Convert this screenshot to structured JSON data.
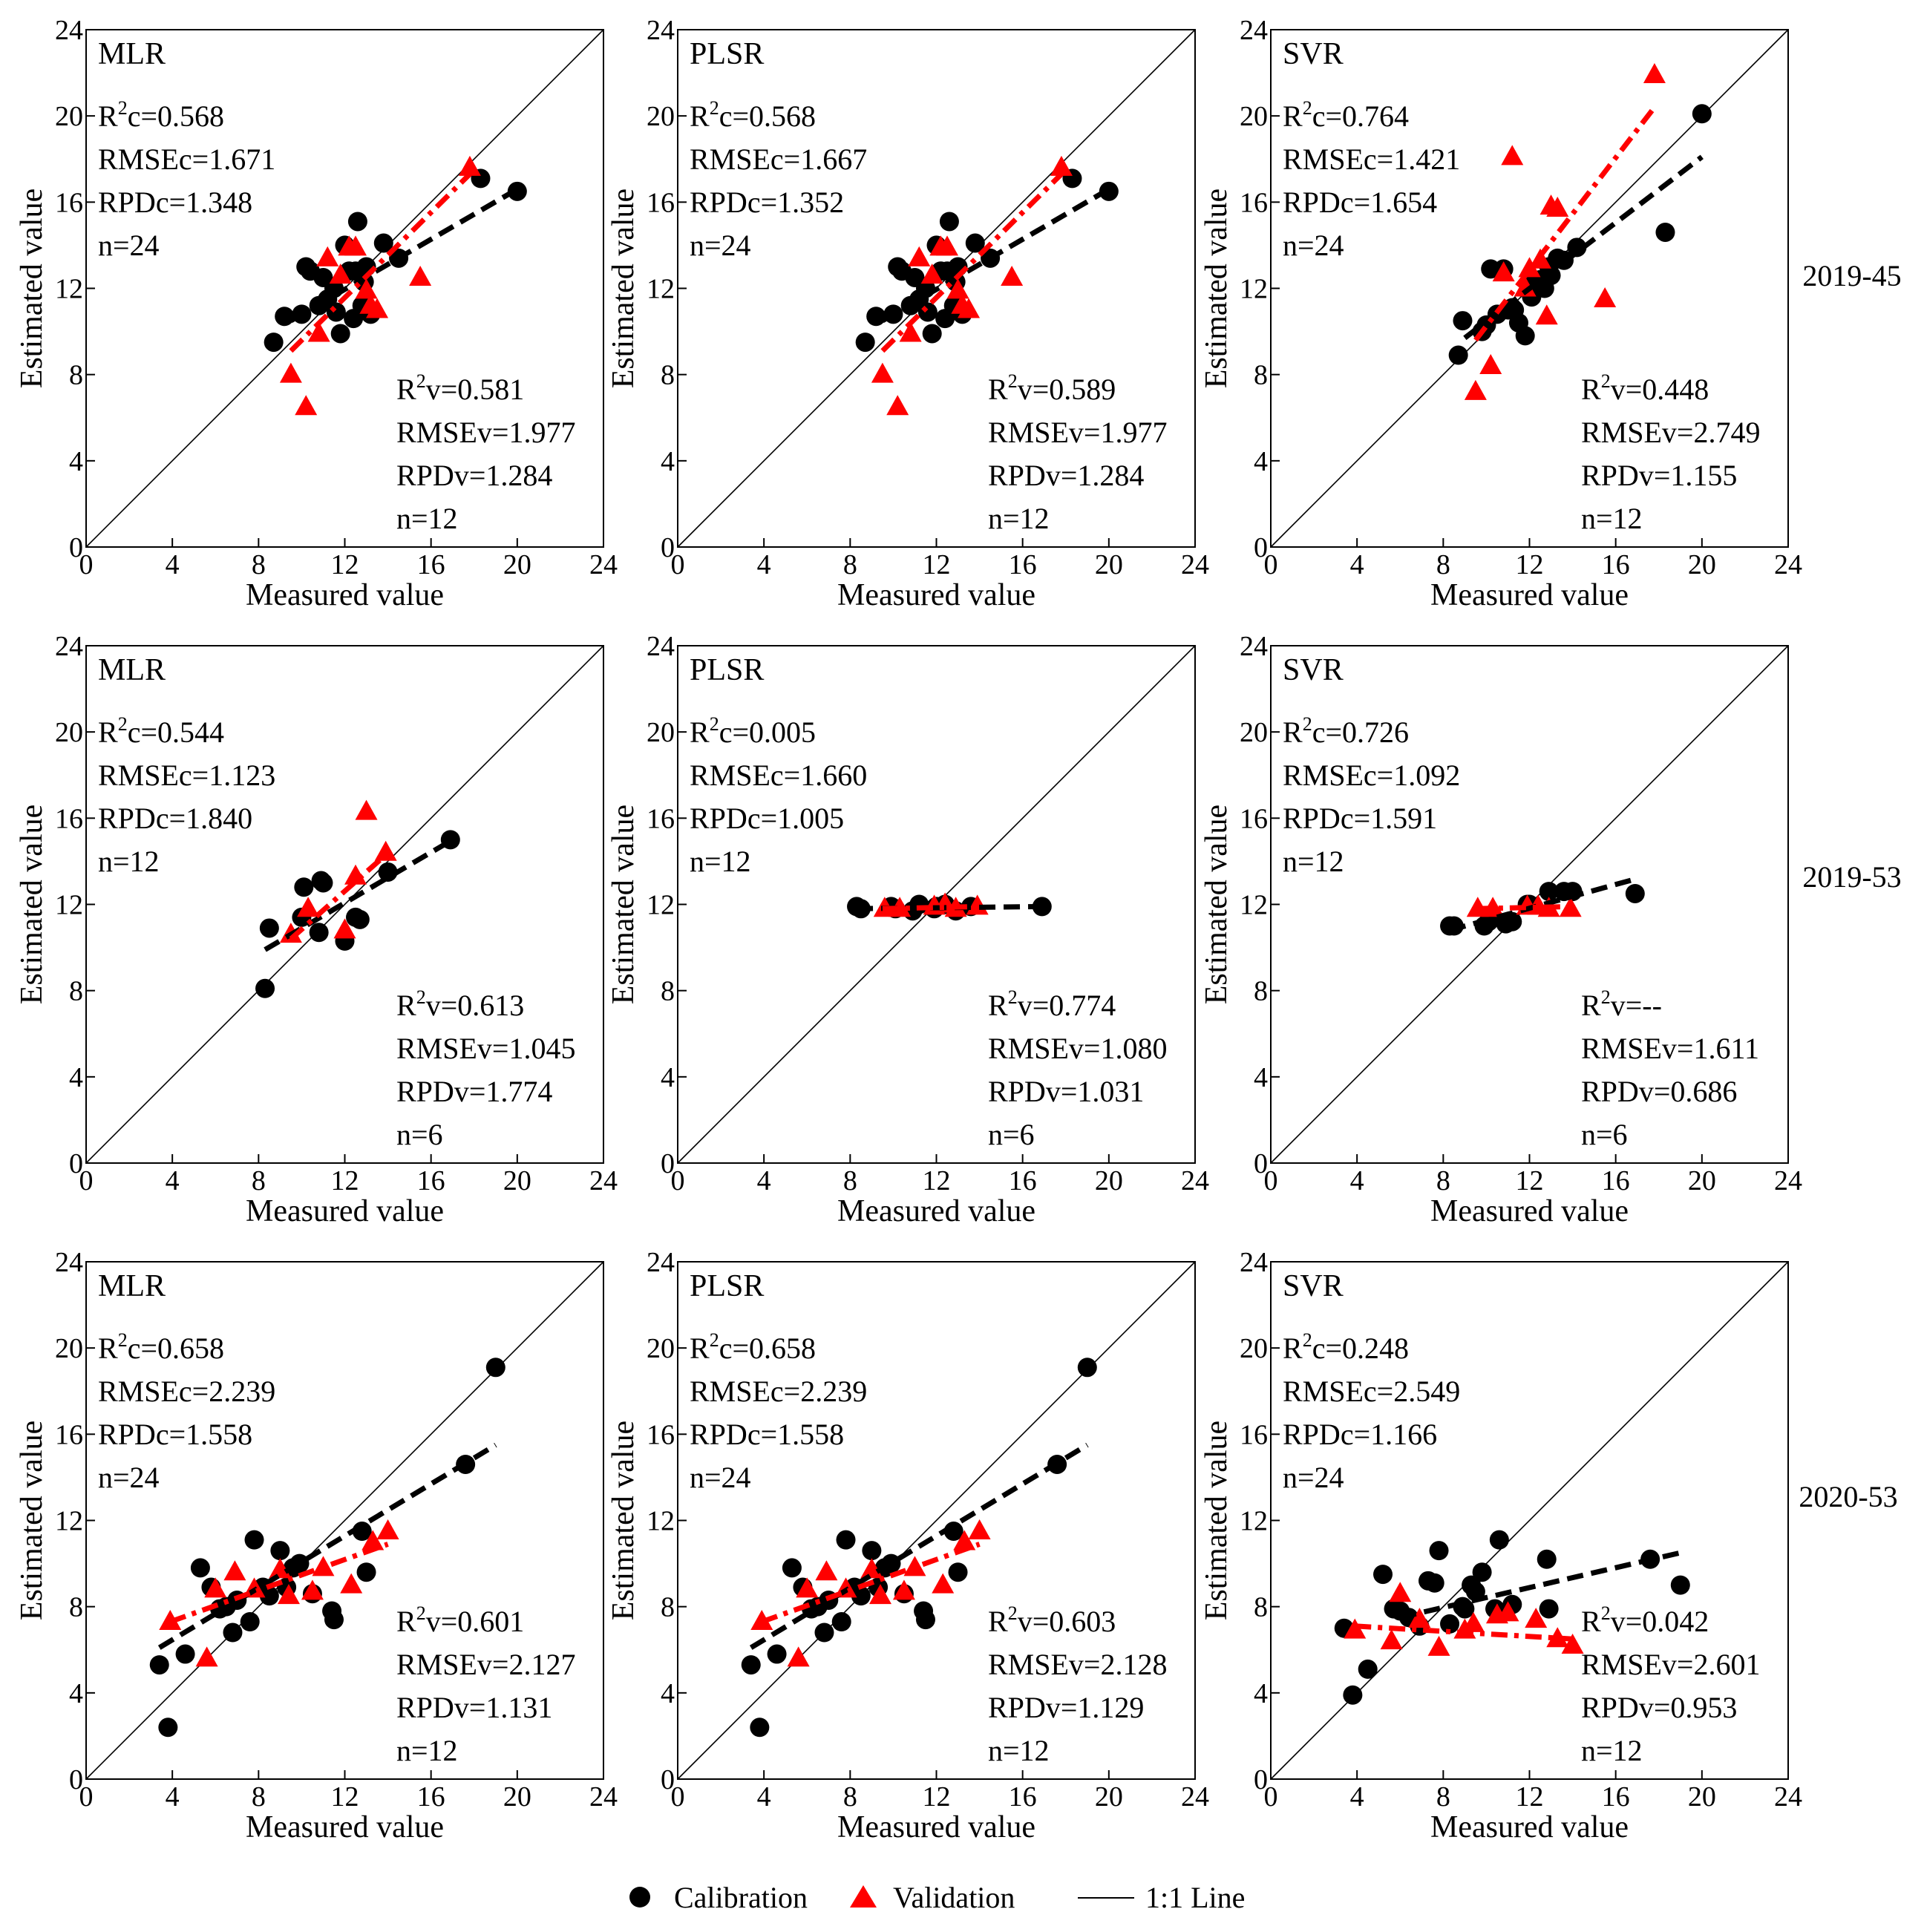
{
  "figure": {
    "title": "",
    "row_labels": [
      "2019-45",
      "2019-53",
      "2020-53"
    ],
    "legend": {
      "calibration_label": "Calibration",
      "validation_label": "Validation",
      "line_label": "1:1 Line",
      "placement": "bottom-center"
    },
    "colors": {
      "calibration": "#000000",
      "validation": "#ff0000",
      "one_to_one": "#000000"
    }
  },
  "chart_data": [
    {
      "type": "scatter",
      "title": "MLR",
      "row_label": "2019-45",
      "xlabel": "Measured value",
      "ylabel": "Estimated value",
      "xlim": [
        0,
        24
      ],
      "ylim": [
        0,
        24
      ],
      "ticks": [
        0,
        4,
        8,
        12,
        16,
        20,
        24
      ],
      "calibration_stats": [
        "R²c=0.568",
        "RMSEc=1.671",
        "RPDc=1.348",
        "n=24"
      ],
      "validation_stats": [
        "R²v=0.581",
        "RMSEv=1.977",
        "RPDv=1.284",
        "n=12"
      ],
      "calibration": {
        "x": [
          8.7,
          9.2,
          10.0,
          10.2,
          10.4,
          10.8,
          11.0,
          11.2,
          11.5,
          11.8,
          12.0,
          12.2,
          12.4,
          12.6,
          12.8,
          12.9,
          13.0,
          13.2,
          13.8,
          14.5,
          18.3,
          20.0,
          11.6,
          12.5
        ],
        "y": [
          9.5,
          10.7,
          10.8,
          13.0,
          12.8,
          11.2,
          12.5,
          11.5,
          12.0,
          9.9,
          14.0,
          12.8,
          10.6,
          15.1,
          11.2,
          12.3,
          13.0,
          10.8,
          14.1,
          13.4,
          17.1,
          16.5,
          10.9,
          12.8
        ]
      },
      "validation": {
        "x": [
          9.5,
          10.2,
          10.8,
          11.2,
          11.8,
          12.2,
          12.5,
          13.0,
          13.2,
          13.5,
          15.5,
          17.8
        ],
        "y": [
          8.0,
          6.5,
          9.9,
          13.4,
          12.6,
          13.9,
          13.9,
          11.9,
          11.2,
          11.0,
          12.5,
          17.6
        ]
      },
      "calibration_fit": {
        "x": [
          9.5,
          20.0
        ],
        "y": [
          10.5,
          16.6
        ]
      },
      "validation_fit": {
        "x": [
          9.5,
          17.8
        ],
        "y": [
          9.1,
          17.3
        ]
      }
    },
    {
      "type": "scatter",
      "title": "PLSR",
      "row_label": "2019-45",
      "xlabel": "Measured value",
      "ylabel": "Estimated value",
      "xlim": [
        0,
        24
      ],
      "ylim": [
        0,
        24
      ],
      "ticks": [
        0,
        4,
        8,
        12,
        16,
        20,
        24
      ],
      "calibration_stats": [
        "R²c=0.568",
        "RMSEc=1.667",
        "RPDc=1.352",
        "n=24"
      ],
      "validation_stats": [
        "R²v=0.589",
        "RMSEv=1.977",
        "RPDv=1.284",
        "n=12"
      ],
      "calibration": {
        "x": [
          8.7,
          9.2,
          10.0,
          10.2,
          10.4,
          10.8,
          11.0,
          11.2,
          11.5,
          11.8,
          12.0,
          12.2,
          12.4,
          12.6,
          12.8,
          12.9,
          13.0,
          13.2,
          13.8,
          14.5,
          18.3,
          20.0,
          11.6,
          12.5
        ],
        "y": [
          9.5,
          10.7,
          10.8,
          13.0,
          12.8,
          11.2,
          12.5,
          11.5,
          12.0,
          9.9,
          14.0,
          12.8,
          10.6,
          15.1,
          11.2,
          12.3,
          13.0,
          10.8,
          14.1,
          13.4,
          17.1,
          16.5,
          10.9,
          12.8
        ]
      },
      "validation": {
        "x": [
          9.5,
          10.2,
          10.8,
          11.2,
          11.8,
          12.2,
          12.5,
          13.0,
          13.2,
          13.5,
          15.5,
          17.8
        ],
        "y": [
          8.0,
          6.5,
          9.9,
          13.4,
          12.6,
          13.9,
          13.9,
          11.9,
          11.2,
          11.0,
          12.5,
          17.6
        ]
      },
      "calibration_fit": {
        "x": [
          9.5,
          20.0
        ],
        "y": [
          10.5,
          16.6
        ]
      },
      "validation_fit": {
        "x": [
          9.5,
          17.8
        ],
        "y": [
          9.1,
          17.3
        ]
      }
    },
    {
      "type": "scatter",
      "title": "SVR",
      "row_label": "2019-45",
      "xlabel": "Measured value",
      "ylabel": "Estimated value",
      "xlim": [
        0,
        24
      ],
      "ylim": [
        0,
        24
      ],
      "ticks": [
        0,
        4,
        8,
        12,
        16,
        20,
        24
      ],
      "calibration_stats": [
        "R²c=0.764",
        "RMSEc=1.421",
        "RPDc=1.654",
        "n=24"
      ],
      "validation_stats": [
        "R²v=0.448",
        "RMSEv=2.749",
        "RPDv=1.155",
        "n=12"
      ],
      "calibration": {
        "x": [
          8.7,
          8.9,
          9.8,
          10.2,
          10.5,
          10.8,
          11.0,
          11.2,
          11.3,
          11.5,
          11.8,
          12.0,
          12.3,
          12.5,
          12.7,
          12.9,
          13.0,
          13.3,
          13.6,
          14.2,
          18.3,
          20.0,
          10.0,
          12.1
        ],
        "y": [
          8.9,
          10.5,
          10.0,
          12.9,
          10.8,
          12.9,
          11.0,
          11.1,
          11.0,
          10.4,
          9.8,
          12.2,
          12.0,
          12.4,
          12.0,
          13.0,
          12.6,
          13.4,
          13.3,
          13.9,
          14.6,
          20.1,
          10.3,
          11.6
        ]
      },
      "validation": {
        "x": [
          9.5,
          10.2,
          10.8,
          11.2,
          11.8,
          12.0,
          12.5,
          12.8,
          13.0,
          13.3,
          15.5,
          17.8
        ],
        "y": [
          7.2,
          8.4,
          12.7,
          18.1,
          12.0,
          12.9,
          13.3,
          10.7,
          15.8,
          15.7,
          11.5,
          21.9
        ]
      },
      "calibration_fit": {
        "x": [
          9.0,
          20.0
        ],
        "y": [
          9.7,
          18.1
        ]
      },
      "validation_fit": {
        "x": [
          9.5,
          17.8
        ],
        "y": [
          9.6,
          20.4
        ]
      }
    },
    {
      "type": "scatter",
      "title": "MLR",
      "row_label": "2019-53",
      "xlabel": "Measured value",
      "ylabel": "Estimated value",
      "xlim": [
        0,
        24
      ],
      "ylim": [
        0,
        24
      ],
      "ticks": [
        0,
        4,
        8,
        12,
        16,
        20,
        24
      ],
      "calibration_stats": [
        "R²c=0.544",
        "RMSEc=1.123",
        "RPDc=1.840",
        "n=12"
      ],
      "validation_stats": [
        "R²v=0.613",
        "RMSEv=1.045",
        "RPDv=1.774",
        "n=6"
      ],
      "calibration": {
        "x": [
          8.3,
          8.5,
          10.0,
          10.1,
          10.8,
          10.9,
          12.0,
          12.5,
          12.7,
          14.0,
          16.9,
          11.0
        ],
        "y": [
          8.1,
          10.9,
          11.4,
          12.8,
          10.7,
          13.1,
          10.3,
          11.4,
          11.3,
          13.5,
          15.0,
          13.0
        ]
      },
      "validation": {
        "x": [
          9.5,
          10.3,
          12.0,
          12.5,
          13.0,
          13.9
        ],
        "y": [
          10.6,
          11.8,
          10.8,
          13.3,
          16.3,
          14.4
        ]
      },
      "calibration_fit": {
        "x": [
          8.3,
          17.0
        ],
        "y": [
          9.9,
          15.0
        ]
      },
      "validation_fit": {
        "x": [
          9.5,
          13.9
        ],
        "y": [
          10.4,
          14.3
        ]
      }
    },
    {
      "type": "scatter",
      "title": "PLSR",
      "row_label": "2019-53",
      "xlabel": "Measured value",
      "ylabel": "Estimated value",
      "xlim": [
        0,
        24
      ],
      "ylim": [
        0,
        24
      ],
      "ticks": [
        0,
        4,
        8,
        12,
        16,
        20,
        24
      ],
      "calibration_stats": [
        "R²c=0.005",
        "RMSEc=1.660",
        "RPDc=1.005",
        "n=12"
      ],
      "validation_stats": [
        "R²v=0.774",
        "RMSEv=1.080",
        "RPDv=1.031",
        "n=6"
      ],
      "calibration": {
        "x": [
          8.3,
          8.5,
          9.9,
          10.1,
          10.9,
          11.2,
          11.9,
          12.0,
          12.9,
          13.6,
          16.9,
          12.4
        ],
        "y": [
          11.9,
          11.8,
          11.9,
          11.8,
          11.7,
          12.0,
          11.8,
          11.9,
          11.7,
          11.9,
          11.9,
          12.0
        ]
      },
      "validation": {
        "x": [
          9.6,
          10.3,
          11.9,
          12.4,
          12.9,
          13.9
        ],
        "y": [
          11.8,
          11.8,
          11.9,
          12.0,
          11.8,
          11.9
        ]
      },
      "calibration_fit": {
        "x": [
          8.3,
          17.0
        ],
        "y": [
          11.8,
          11.9
        ]
      },
      "validation_fit": {
        "x": [
          9.5,
          13.9
        ],
        "y": [
          11.8,
          11.9
        ]
      }
    },
    {
      "type": "scatter",
      "title": "SVR",
      "row_label": "2019-53",
      "xlabel": "Measured value",
      "ylabel": "Estimated value",
      "xlim": [
        0,
        24
      ],
      "ylim": [
        0,
        24
      ],
      "ticks": [
        0,
        4,
        8,
        12,
        16,
        20,
        24
      ],
      "calibration_stats": [
        "R²c=0.726",
        "RMSEc=1.092",
        "RPDc=1.591",
        "n=12"
      ],
      "validation_stats": [
        "R²v=--",
        "RMSEv=1.611",
        "RPDv=0.686",
        "n=6"
      ],
      "calibration": {
        "x": [
          8.3,
          8.5,
          9.9,
          10.1,
          10.9,
          11.2,
          11.9,
          12.0,
          12.9,
          13.6,
          16.9,
          14.0
        ],
        "y": [
          11.0,
          11.0,
          11.0,
          11.2,
          11.1,
          11.2,
          12.0,
          12.0,
          12.6,
          12.6,
          12.5,
          12.6
        ]
      },
      "validation": {
        "x": [
          9.6,
          10.3,
          11.9,
          12.4,
          12.9,
          13.9
        ],
        "y": [
          11.8,
          11.8,
          11.9,
          11.9,
          11.8,
          11.8
        ]
      },
      "calibration_fit": {
        "x": [
          8.3,
          17.0
        ],
        "y": [
          10.8,
          13.2
        ]
      },
      "validation_fit": {
        "x": [
          9.5,
          13.9
        ],
        "y": [
          11.8,
          11.9
        ]
      }
    },
    {
      "type": "scatter",
      "title": "MLR",
      "row_label": "2020-53",
      "xlabel": "Measured value",
      "ylabel": "Estimated value",
      "xlim": [
        0,
        24
      ],
      "ylim": [
        0,
        24
      ],
      "ticks": [
        0,
        4,
        8,
        12,
        16,
        20,
        24
      ],
      "calibration_stats": [
        "R²c=0.658",
        "RMSEc=2.239",
        "RPDc=1.558",
        "n=24"
      ],
      "validation_stats": [
        "R²v=0.601",
        "RMSEv=2.127",
        "RPDv=1.131",
        "n=12"
      ],
      "calibration": {
        "x": [
          3.4,
          3.8,
          4.6,
          5.3,
          5.8,
          6.2,
          6.5,
          6.8,
          7.0,
          7.6,
          7.8,
          8.5,
          9.0,
          9.3,
          9.6,
          9.9,
          10.5,
          11.4,
          11.5,
          12.8,
          13.0,
          17.6,
          19.0,
          8.2
        ],
        "y": [
          5.3,
          2.4,
          5.8,
          9.8,
          8.9,
          7.9,
          8.0,
          6.8,
          8.3,
          7.3,
          11.1,
          8.5,
          10.6,
          8.9,
          9.8,
          10.0,
          8.6,
          7.8,
          7.4,
          11.5,
          9.6,
          14.6,
          19.1,
          8.9
        ]
      },
      "validation": {
        "x": [
          3.9,
          5.6,
          6.0,
          6.9,
          7.8,
          9.0,
          9.4,
          10.5,
          11.0,
          12.3,
          13.3,
          14.0
        ],
        "y": [
          7.3,
          5.6,
          8.8,
          9.6,
          8.8,
          9.7,
          8.5,
          8.7,
          9.8,
          9.0,
          11.0,
          11.5
        ]
      },
      "calibration_fit": {
        "x": [
          3.4,
          19.0
        ],
        "y": [
          6.1,
          15.5
        ]
      },
      "validation_fit": {
        "x": [
          3.9,
          14.0
        ],
        "y": [
          7.3,
          10.9
        ]
      }
    },
    {
      "type": "scatter",
      "title": "PLSR",
      "row_label": "2020-53",
      "xlabel": "Measured value",
      "ylabel": "Estimated value",
      "xlim": [
        0,
        24
      ],
      "ylim": [
        0,
        24
      ],
      "ticks": [
        0,
        4,
        8,
        12,
        16,
        20,
        24
      ],
      "calibration_stats": [
        "R²c=0.658",
        "RMSEc=2.239",
        "RPDc=1.558",
        "n=24"
      ],
      "validation_stats": [
        "R²v=0.603",
        "RMSEv=2.128",
        "RPDv=1.129",
        "n=12"
      ],
      "calibration": {
        "x": [
          3.4,
          3.8,
          4.6,
          5.3,
          5.8,
          6.2,
          6.5,
          6.8,
          7.0,
          7.6,
          7.8,
          8.5,
          9.0,
          9.3,
          9.6,
          9.9,
          10.5,
          11.4,
          11.5,
          12.8,
          13.0,
          17.6,
          19.0,
          8.2
        ],
        "y": [
          5.3,
          2.4,
          5.8,
          9.8,
          8.9,
          7.9,
          8.0,
          6.8,
          8.3,
          7.3,
          11.1,
          8.5,
          10.6,
          8.9,
          9.8,
          10.0,
          8.6,
          7.8,
          7.4,
          11.5,
          9.6,
          14.6,
          19.1,
          8.9
        ]
      },
      "validation": {
        "x": [
          3.9,
          5.6,
          6.0,
          6.9,
          7.8,
          9.0,
          9.4,
          10.5,
          11.0,
          12.3,
          13.3,
          14.0
        ],
        "y": [
          7.3,
          5.6,
          8.8,
          9.6,
          8.8,
          9.7,
          8.5,
          8.7,
          9.8,
          9.0,
          11.0,
          11.5
        ]
      },
      "calibration_fit": {
        "x": [
          3.4,
          19.0
        ],
        "y": [
          6.1,
          15.5
        ]
      },
      "validation_fit": {
        "x": [
          3.9,
          14.0
        ],
        "y": [
          7.3,
          10.9
        ]
      }
    },
    {
      "type": "scatter",
      "title": "SVR",
      "row_label": "2020-53",
      "xlabel": "Measured value",
      "ylabel": "Estimated value",
      "xlim": [
        0,
        24
      ],
      "ylim": [
        0,
        24
      ],
      "ticks": [
        0,
        4,
        8,
        12,
        16,
        20,
        24
      ],
      "calibration_stats": [
        "R²c=0.248",
        "RMSEc=2.549",
        "RPDc=1.166",
        "n=24"
      ],
      "validation_stats": [
        "R²v=0.042",
        "RMSEv=2.601",
        "RPDv=0.953",
        "n=12"
      ],
      "calibration": {
        "x": [
          3.4,
          3.8,
          4.5,
          5.2,
          5.7,
          6.0,
          6.4,
          6.9,
          7.3,
          7.6,
          7.8,
          8.3,
          9.0,
          9.3,
          9.5,
          9.8,
          10.4,
          10.6,
          11.2,
          12.8,
          12.9,
          17.6,
          19.0,
          8.9
        ],
        "y": [
          7.0,
          3.9,
          5.1,
          9.5,
          7.9,
          7.8,
          7.5,
          7.1,
          9.2,
          9.1,
          10.6,
          7.2,
          7.9,
          9.0,
          8.7,
          9.6,
          7.9,
          11.1,
          8.1,
          10.2,
          7.9,
          10.2,
          9.0,
          8.0
        ]
      },
      "validation": {
        "x": [
          3.9,
          5.6,
          6.0,
          6.9,
          7.8,
          9.0,
          9.4,
          10.5,
          11.0,
          12.3,
          13.3,
          14.0
        ],
        "y": [
          6.9,
          6.4,
          8.6,
          7.4,
          6.1,
          6.9,
          7.2,
          7.6,
          7.7,
          7.4,
          6.5,
          6.2
        ]
      },
      "calibration_fit": {
        "x": [
          6.0,
          19.0
        ],
        "y": [
          7.5,
          10.5
        ]
      },
      "validation_fit": {
        "x": [
          3.9,
          14.0
        ],
        "y": [
          7.1,
          6.5
        ]
      }
    }
  ]
}
